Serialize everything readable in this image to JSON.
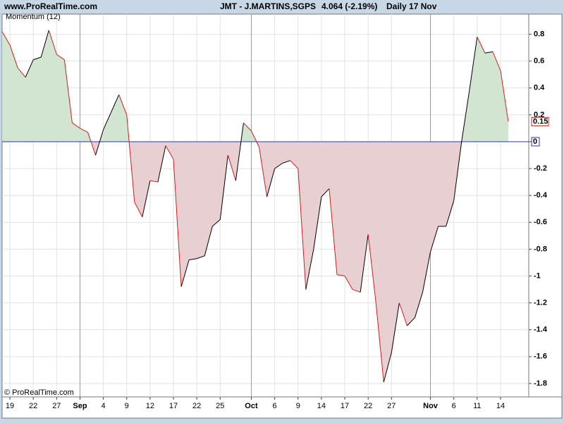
{
  "header": {
    "site": "www.ProRealTime.com",
    "symbol": "JMT - J.MARTINS,SGPS",
    "price": "4.064 (-2.19%)",
    "period": "Daily  17 Nov"
  },
  "footer": "© ProRealTime.com",
  "chart_data": {
    "type": "line",
    "categories": [
      null,
      "19",
      null,
      null,
      "22",
      null,
      null,
      "27",
      null,
      null,
      "Sep",
      null,
      null,
      "4",
      null,
      null,
      "9",
      null,
      null,
      "12",
      null,
      null,
      "17",
      null,
      null,
      "22",
      null,
      null,
      "25",
      null,
      null,
      null,
      "Oct",
      null,
      null,
      "6",
      null,
      null,
      "9",
      null,
      null,
      "14",
      null,
      null,
      "17",
      null,
      null,
      "22",
      null,
      null,
      "27",
      null,
      null,
      null,
      null,
      "Nov",
      null,
      null,
      "6",
      null,
      null,
      "11",
      null,
      null,
      "14",
      null
    ],
    "month_starts": [
      "Sep",
      "Oct",
      "Nov"
    ],
    "series": [
      {
        "name": "Momentum (12)",
        "color": "#d02020",
        "values": [
          0.82,
          0.72,
          0.55,
          0.48,
          0.61,
          0.63,
          0.83,
          0.65,
          0.61,
          0.14,
          0.1,
          0.07,
          -0.1,
          0.09,
          0.22,
          0.35,
          0.2,
          -0.45,
          -0.56,
          -0.29,
          -0.3,
          -0.03,
          -0.13,
          -1.08,
          -0.88,
          -0.87,
          -0.85,
          -0.63,
          -0.58,
          -0.1,
          -0.29,
          0.14,
          0.08,
          -0.04,
          -0.41,
          -0.2,
          -0.16,
          -0.14,
          -0.2,
          -1.1,
          -0.8,
          -0.41,
          -0.35,
          -0.99,
          -1.0,
          -1.1,
          -1.12,
          -0.69,
          -1.2,
          -1.79,
          -1.57,
          -1.2,
          -1.37,
          -1.31,
          -1.12,
          -0.82,
          -0.63,
          -0.63,
          -0.44,
          0.0,
          0.38,
          0.78,
          0.66,
          0.67,
          0.53,
          0.15
        ]
      }
    ],
    "rise_color": "#000000",
    "fall_color": "#d02020",
    "above_fill": "#d2e5d0",
    "below_fill": "#e8d0d2",
    "ylim": [
      -1.9,
      0.95
    ],
    "yticks": [
      0.8,
      0.6,
      0.4,
      0.2,
      0,
      -0.2,
      -0.4,
      -0.6,
      -0.8,
      -1,
      -1.2,
      -1.4,
      -1.6,
      -1.8
    ],
    "grid": true
  }
}
